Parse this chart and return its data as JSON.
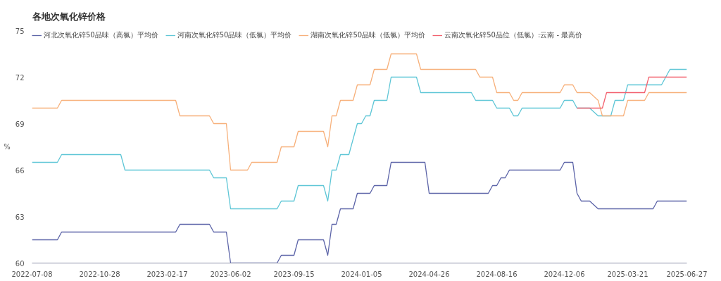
{
  "chart_data": {
    "type": "line",
    "title": "各地次氧化锌价格",
    "ylabel": "%",
    "xlim": [
      "2022-07-08",
      "2025-06-27"
    ],
    "xticks": [
      "2022-07-08",
      "2022-10-28",
      "2023-02-17",
      "2023-06-02",
      "2023-09-15",
      "2024-01-05",
      "2024-04-26",
      "2024-08-16",
      "2024-12-06",
      "2025-03-21",
      "2025-06-27"
    ],
    "ylim": [
      60,
      75
    ],
    "yticks": [
      60,
      63,
      66,
      69,
      72,
      75
    ],
    "grid": false,
    "legend": "top left",
    "marker": "none",
    "line_style": "solid",
    "series": [
      {
        "name": "河北次氧化锌50品味（高氯）平均价",
        "color": "#5c64a8",
        "x": [
          "2022-07-08",
          "2022-08-19",
          "2022-08-26",
          "2023-03-03",
          "2023-03-10",
          "2023-04-28",
          "2023-05-05",
          "2023-05-26",
          "2023-06-02",
          "2023-08-18",
          "2023-08-25",
          "2023-09-15",
          "2023-09-22",
          "2023-11-03",
          "2023-11-10",
          "2023-11-17",
          "2023-11-24",
          "2023-12-01",
          "2023-12-22",
          "2023-12-29",
          "2024-01-19",
          "2024-01-26",
          "2024-02-16",
          "2024-02-23",
          "2024-04-19",
          "2024-04-26",
          "2024-08-02",
          "2024-08-09",
          "2024-08-16",
          "2024-08-23",
          "2024-08-30",
          "2024-09-06",
          "2024-11-29",
          "2024-12-06",
          "2024-12-20",
          "2024-12-27",
          "2025-01-03",
          "2025-01-17",
          "2025-01-31",
          "2025-05-02",
          "2025-05-09",
          "2025-06-27"
        ],
        "values": [
          61.5,
          61.5,
          62,
          62,
          62.5,
          62.5,
          62,
          62,
          60,
          60,
          60.5,
          60.5,
          61.5,
          61.5,
          60.5,
          62.5,
          62.5,
          63.5,
          63.5,
          64.5,
          64.5,
          65,
          65,
          66.5,
          66.5,
          64.5,
          64.5,
          65,
          65,
          65.5,
          65.5,
          66,
          66,
          66.5,
          66.5,
          64.5,
          64,
          64,
          63.5,
          63.5,
          64,
          64
        ]
      },
      {
        "name": "河南次氧化锌50品味（低氯）平均价",
        "color": "#5ec6d6",
        "x": [
          "2022-07-08",
          "2022-08-19",
          "2022-08-26",
          "2022-12-02",
          "2022-12-09",
          "2023-04-28",
          "2023-05-05",
          "2023-05-26",
          "2023-06-02",
          "2023-08-18",
          "2023-08-25",
          "2023-09-15",
          "2023-09-22",
          "2023-11-03",
          "2023-11-10",
          "2023-11-17",
          "2023-11-24",
          "2023-12-01",
          "2023-12-15",
          "2023-12-22",
          "2023-12-29",
          "2024-01-05",
          "2024-01-12",
          "2024-01-19",
          "2024-01-26",
          "2024-02-16",
          "2024-02-23",
          "2024-04-05",
          "2024-04-12",
          "2024-07-05",
          "2024-07-12",
          "2024-08-09",
          "2024-08-16",
          "2024-09-06",
          "2024-09-13",
          "2024-09-20",
          "2024-09-27",
          "2024-11-29",
          "2024-12-06",
          "2024-12-20",
          "2024-12-27",
          "2025-01-17",
          "2025-01-31",
          "2025-02-21",
          "2025-02-28",
          "2025-03-14",
          "2025-03-21",
          "2025-05-16",
          "2025-05-30",
          "2025-06-27"
        ],
        "values": [
          66.5,
          66.5,
          67,
          67,
          66,
          66,
          65.5,
          65.5,
          63.5,
          63.5,
          64,
          64,
          65,
          65,
          64,
          66,
          66,
          67,
          67,
          68,
          69,
          69,
          69.5,
          69.5,
          70.5,
          70.5,
          72,
          72,
          71,
          71,
          70.5,
          70.5,
          70,
          70,
          69.5,
          69.5,
          70,
          70,
          70.5,
          70.5,
          70,
          70,
          69.5,
          69.5,
          70.5,
          70.5,
          71.5,
          71.5,
          72.5,
          72.5
        ]
      },
      {
        "name": "湖南次氧化锌50品味（低氯）平均价",
        "color": "#f7b07a",
        "x": [
          "2022-07-08",
          "2022-08-19",
          "2022-08-26",
          "2023-03-03",
          "2023-03-10",
          "2023-04-28",
          "2023-05-05",
          "2023-05-26",
          "2023-06-02",
          "2023-06-30",
          "2023-07-07",
          "2023-08-18",
          "2023-08-25",
          "2023-09-15",
          "2023-09-22",
          "2023-11-03",
          "2023-11-10",
          "2023-11-17",
          "2023-11-24",
          "2023-12-01",
          "2023-12-22",
          "2023-12-29",
          "2024-01-19",
          "2024-01-26",
          "2024-02-16",
          "2024-02-23",
          "2024-04-05",
          "2024-04-12",
          "2024-07-12",
          "2024-07-19",
          "2024-08-09",
          "2024-08-16",
          "2024-09-06",
          "2024-09-13",
          "2024-09-20",
          "2024-09-27",
          "2024-11-29",
          "2024-12-06",
          "2024-12-20",
          "2024-12-27",
          "2025-01-17",
          "2025-01-31",
          "2025-02-07",
          "2025-03-14",
          "2025-03-21",
          "2025-04-18",
          "2025-04-25",
          "2025-06-27"
        ],
        "values": [
          70,
          70,
          70.5,
          70.5,
          69.5,
          69.5,
          69,
          69,
          66,
          66,
          66.5,
          66.5,
          67.5,
          67.5,
          68.5,
          68.5,
          67.5,
          69.5,
          69.5,
          70.5,
          70.5,
          71.5,
          71.5,
          72.5,
          72.5,
          73.5,
          73.5,
          72.5,
          72.5,
          72,
          72,
          71,
          71,
          70.5,
          70.5,
          71,
          71,
          71.5,
          71.5,
          71,
          71,
          70.5,
          69.5,
          69.5,
          70.5,
          70.5,
          71,
          71
        ]
      },
      {
        "name": "云南次氧化锌50品位（低氯）:云南 - 最高价",
        "color": "#f2606e",
        "x": [
          "2024-12-27",
          "2025-02-07",
          "2025-02-14",
          "2025-04-18",
          "2025-04-25",
          "2025-06-27"
        ],
        "values": [
          70,
          70,
          71,
          71,
          72,
          72
        ]
      }
    ]
  }
}
